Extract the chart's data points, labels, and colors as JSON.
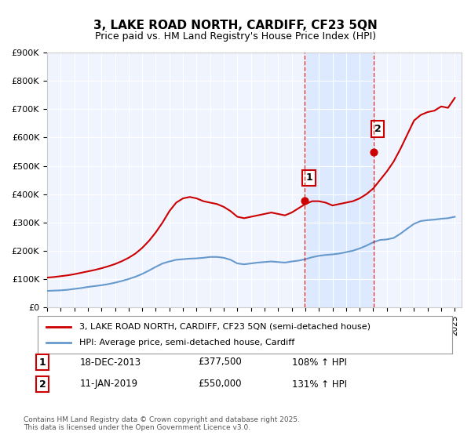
{
  "title": "3, LAKE ROAD NORTH, CARDIFF, CF23 5QN",
  "subtitle": "Price paid vs. HM Land Registry's House Price Index (HPI)",
  "xlabel": "",
  "ylabel": "",
  "background_color": "#ffffff",
  "plot_bg_color": "#f0f4ff",
  "grid_color": "#ffffff",
  "hpi_line_color": "#6699cc",
  "price_line_color": "#cc0000",
  "ylim": [
    0,
    900000
  ],
  "xlim_start": 1995,
  "xlim_end": 2025.5,
  "transaction1_x": 2013.97,
  "transaction1_y": 377500,
  "transaction1_label": "1",
  "transaction1_date": "18-DEC-2013",
  "transaction1_price": "£377,500",
  "transaction1_hpi": "108% ↑ HPI",
  "transaction2_x": 2019.03,
  "transaction2_y": 550000,
  "transaction2_label": "2",
  "transaction2_date": "11-JAN-2019",
  "transaction2_price": "£550,000",
  "transaction2_hpi": "131% ↑ HPI",
  "shade_color": "#cce0ff",
  "shade_alpha": 0.5,
  "footnote": "Contains HM Land Registry data © Crown copyright and database right 2025.\nThis data is licensed under the Open Government Licence v3.0.",
  "legend_label_price": "3, LAKE ROAD NORTH, CARDIFF, CF23 5QN (semi-detached house)",
  "legend_label_hpi": "HPI: Average price, semi-detached house, Cardiff",
  "hpi_data_x": [
    1995,
    1995.5,
    1996,
    1996.5,
    1997,
    1997.5,
    1998,
    1998.5,
    1999,
    1999.5,
    2000,
    2000.5,
    2001,
    2001.5,
    2002,
    2002.5,
    2003,
    2003.5,
    2004,
    2004.5,
    2005,
    2005.5,
    2006,
    2006.5,
    2007,
    2007.5,
    2008,
    2008.5,
    2009,
    2009.5,
    2010,
    2010.5,
    2011,
    2011.5,
    2012,
    2012.5,
    2013,
    2013.5,
    2014,
    2014.5,
    2015,
    2015.5,
    2016,
    2016.5,
    2017,
    2017.5,
    2018,
    2018.5,
    2019,
    2019.5,
    2020,
    2020.5,
    2021,
    2021.5,
    2022,
    2022.5,
    2023,
    2023.5,
    2024,
    2024.5,
    2025
  ],
  "hpi_data_y": [
    58000,
    59000,
    60000,
    62000,
    65000,
    68000,
    72000,
    75000,
    78000,
    82000,
    87000,
    93000,
    100000,
    108000,
    118000,
    130000,
    143000,
    155000,
    162000,
    168000,
    170000,
    172000,
    173000,
    175000,
    178000,
    178000,
    175000,
    168000,
    155000,
    152000,
    155000,
    158000,
    160000,
    162000,
    160000,
    158000,
    162000,
    165000,
    170000,
    177000,
    182000,
    185000,
    187000,
    190000,
    195000,
    200000,
    208000,
    218000,
    230000,
    238000,
    240000,
    245000,
    260000,
    278000,
    295000,
    305000,
    308000,
    310000,
    313000,
    315000,
    320000
  ],
  "price_data_x": [
    1995,
    1995.5,
    1996,
    1996.5,
    1997,
    1997.5,
    1998,
    1998.5,
    1999,
    1999.5,
    2000,
    2000.5,
    2001,
    2001.5,
    2002,
    2002.5,
    2003,
    2003.5,
    2004,
    2004.5,
    2005,
    2005.5,
    2006,
    2006.5,
    2007,
    2007.5,
    2008,
    2008.5,
    2009,
    2009.5,
    2010,
    2010.5,
    2011,
    2011.5,
    2012,
    2012.5,
    2013,
    2013.5,
    2014,
    2014.5,
    2015,
    2015.5,
    2016,
    2016.5,
    2017,
    2017.5,
    2018,
    2018.5,
    2019,
    2019.5,
    2020,
    2020.5,
    2021,
    2021.5,
    2022,
    2022.5,
    2023,
    2023.5,
    2024,
    2024.5,
    2025
  ],
  "price_data_y": [
    105000,
    107000,
    110000,
    113000,
    117000,
    122000,
    127000,
    132000,
    138000,
    145000,
    153000,
    163000,
    175000,
    190000,
    210000,
    235000,
    265000,
    300000,
    340000,
    370000,
    385000,
    390000,
    385000,
    375000,
    370000,
    365000,
    355000,
    340000,
    320000,
    315000,
    320000,
    325000,
    330000,
    335000,
    330000,
    325000,
    335000,
    350000,
    365000,
    375000,
    375000,
    370000,
    360000,
    365000,
    370000,
    375000,
    385000,
    400000,
    420000,
    450000,
    480000,
    515000,
    560000,
    610000,
    660000,
    680000,
    690000,
    695000,
    710000,
    705000,
    740000
  ]
}
